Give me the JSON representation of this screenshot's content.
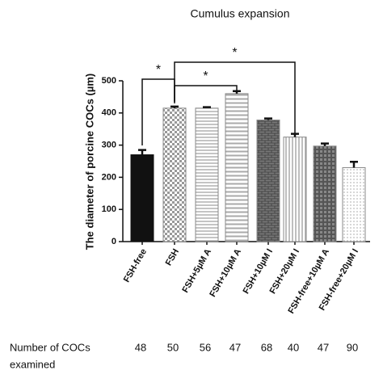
{
  "chart_data": {
    "type": "bar",
    "title": "Cumulus expansion",
    "y_label": "The diameter of porcine COCs (µm)",
    "categories": [
      "FSH-free",
      "FSH",
      "FSH+5µM A",
      "FSH+10µM A",
      "FSH+10µM I",
      "FSH+20µM I",
      "FSH-free+10µM A",
      "FSH-free+20µM I"
    ],
    "values": [
      270,
      415,
      415,
      460,
      378,
      325,
      297,
      230
    ],
    "errors": [
      15,
      5,
      3,
      8,
      5,
      10,
      8,
      18
    ],
    "ylim": [
      0,
      500
    ],
    "yticks": [
      0,
      100,
      200,
      300,
      400,
      500
    ],
    "annotations": [
      {
        "text": "*",
        "between": [
          "FSH-free",
          "FSH"
        ]
      },
      {
        "text": "*",
        "between": [
          "FSH",
          "FSH+10µM A"
        ]
      },
      {
        "text": "*",
        "between": [
          "FSH",
          "FSH+20µM I"
        ]
      }
    ]
  },
  "table": {
    "row_label": [
      "Number of COCs",
      "examined"
    ],
    "counts": [
      "48",
      "50",
      "56",
      "47",
      "68",
      "40",
      "47",
      "90"
    ]
  }
}
